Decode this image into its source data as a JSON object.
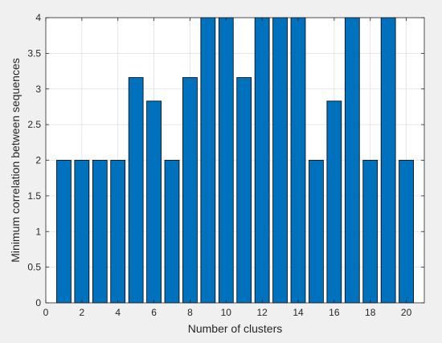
{
  "chart_data": {
    "type": "bar",
    "title": "",
    "xlabel": "Number of clusters",
    "ylabel": "Minimum correlation between sequences",
    "x": [
      1,
      2,
      3,
      4,
      5,
      6,
      7,
      8,
      9,
      10,
      11,
      12,
      13,
      14,
      15,
      16,
      17,
      18,
      19,
      20
    ],
    "values": [
      2,
      2,
      2,
      2,
      3.16,
      2.83,
      2,
      3.16,
      4,
      4,
      3.16,
      4,
      4,
      4,
      2,
      2.83,
      4,
      2,
      4,
      2
    ],
    "xlim": [
      0,
      21
    ],
    "ylim": [
      0,
      4
    ],
    "xticks": [
      0,
      2,
      4,
      6,
      8,
      10,
      12,
      14,
      16,
      18,
      20
    ],
    "xtick_labels": [
      "0",
      "2",
      "4",
      "6",
      "8",
      "10",
      "12",
      "14",
      "16",
      "18",
      "20"
    ],
    "yticks": [
      0,
      0.5,
      1,
      1.5,
      2,
      2.5,
      3,
      3.5,
      4
    ],
    "ytick_labels": [
      "0",
      "0.5",
      "1",
      "1.5",
      "2",
      "2.5",
      "3",
      "3.5",
      "4"
    ],
    "grid": true,
    "legend": false,
    "colors": {
      "bar_fill": "#0072BD",
      "bar_edge": "#000000",
      "figure_bg": "#f0f0f0",
      "axes_bg": "#ffffff",
      "grid": "#dfdfdf",
      "axis": "#262626"
    }
  }
}
